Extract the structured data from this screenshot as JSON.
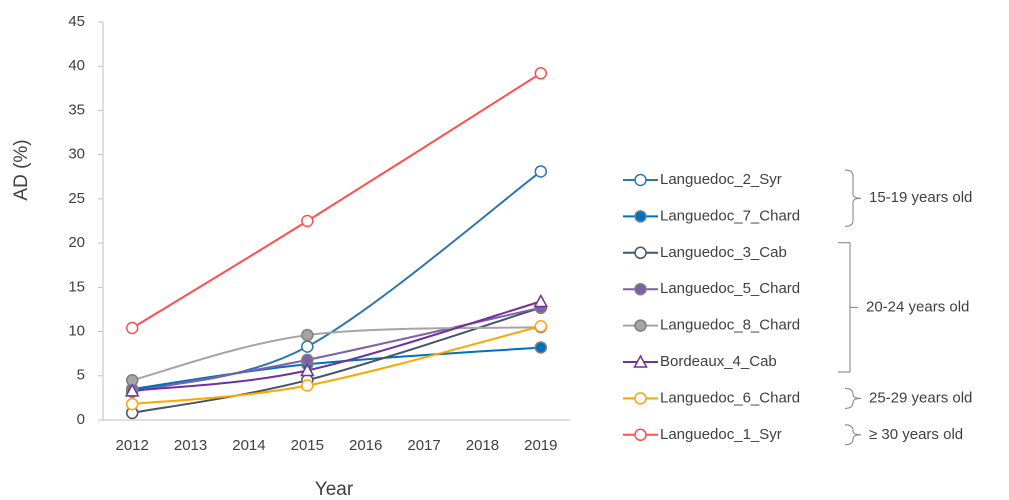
{
  "chart_data": {
    "type": "line",
    "x_label": "Year",
    "y_label": "AD (%)",
    "x": [
      2012,
      2015,
      2019
    ],
    "xlim": [
      2011.5,
      2019.5
    ],
    "xticks": [
      2012,
      2013,
      2014,
      2015,
      2016,
      2017,
      2018,
      2019
    ],
    "ylim": [
      0,
      45
    ],
    "yticks": [
      0,
      5,
      10,
      15,
      20,
      25,
      30,
      35,
      40,
      45
    ],
    "smooth": true,
    "series": [
      {
        "name": "Languedoc_2_Syr",
        "color": "#2E75B6",
        "marker": "open",
        "values": [
          3.3,
          8.3,
          28.1
        ]
      },
      {
        "name": "Languedoc_7_Chard",
        "color": "#0070C0",
        "marker": "filled",
        "values": [
          3.5,
          6.3,
          8.2
        ]
      },
      {
        "name": "Languedoc_3_Cab",
        "color": "#44546A",
        "marker": "open",
        "values": [
          0.8,
          4.5,
          12.7
        ]
      },
      {
        "name": "Languedoc_5_Chard",
        "color": "#7F5FA8",
        "marker": "filled",
        "values": [
          3.2,
          6.8,
          12.7
        ]
      },
      {
        "name": "Languedoc_8_Chard",
        "color": "#A5A5A5",
        "marker": "filled",
        "values": [
          4.5,
          9.6,
          10.5
        ]
      },
      {
        "name": "Bordeaux_4_Cab",
        "color": "#7030A0",
        "marker": "triangle",
        "values": [
          3.3,
          5.6,
          13.4
        ]
      },
      {
        "name": "Languedoc_6_Chard",
        "color": "#FFA500",
        "marker": "open",
        "values": [
          1.8,
          3.9,
          10.6
        ]
      },
      {
        "name": "Languedoc_1_Syr",
        "color": "#FF5050",
        "marker": "open",
        "values": [
          10.4,
          22.5,
          39.2
        ]
      }
    ],
    "groups": [
      {
        "label": "15-19 years old"
      },
      {
        "label": "20-24 years old"
      },
      {
        "label": "25-29 years old"
      },
      {
        "label": "≥ 30 years old"
      }
    ]
  }
}
